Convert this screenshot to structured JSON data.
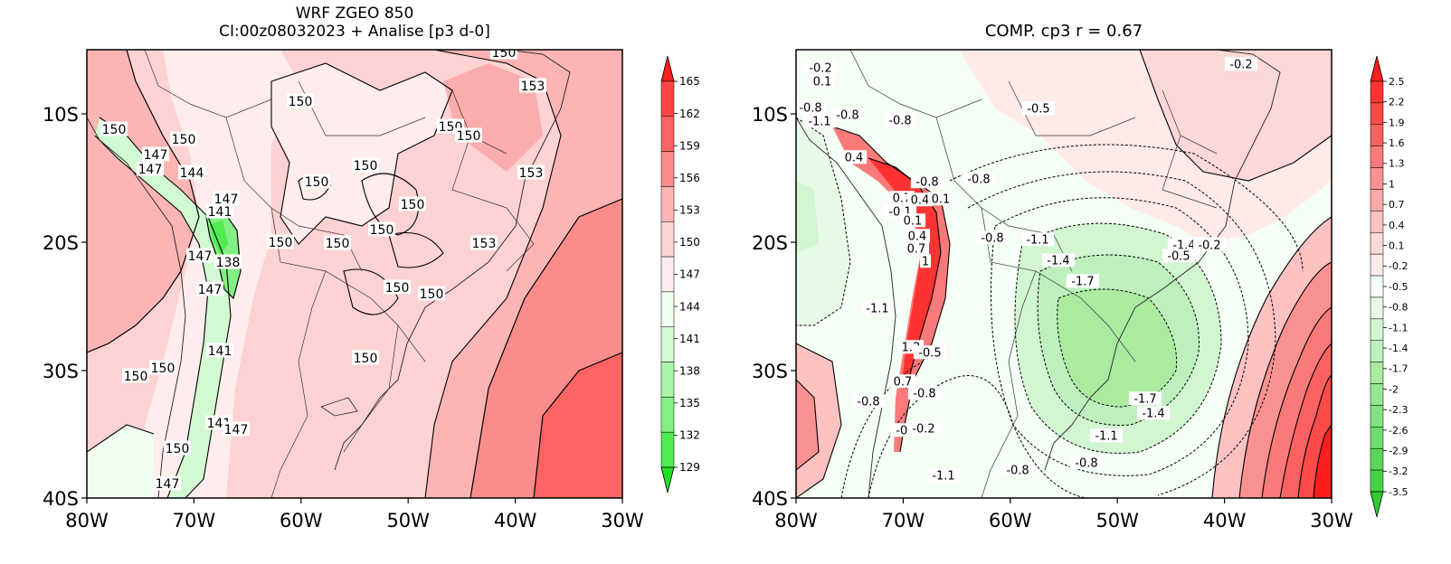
{
  "left_panel": {
    "title_line1": "WRF ZGEO 850",
    "title_line2": "CI:00z08032023 + Analise  [p3 d-0]",
    "y_ticks": [
      "10S",
      "20S",
      "30S",
      "40S"
    ],
    "x_ticks": [
      "80W",
      "70W",
      "60W",
      "50W",
      "40W",
      "30W"
    ],
    "colorbar_labels": [
      "165",
      "162",
      "159",
      "156",
      "153",
      "150",
      "147",
      "144",
      "141",
      "138",
      "135",
      "132",
      "129"
    ],
    "colorbar_colors": [
      "#ff2020",
      "#ff4646",
      "#fc6464",
      "#fa8c8c",
      "#fcb4b4",
      "#fdd2d2",
      "#ffecec",
      "#f0fff0",
      "#d2fad2",
      "#aaf5aa",
      "#82f082",
      "#50eb50",
      "#20e020"
    ],
    "contour_labels": [
      "150",
      "150",
      "153",
      "150",
      "150",
      "150",
      "150",
      "147",
      "147",
      "144",
      "153",
      "147",
      "141",
      "150",
      "150",
      "150",
      "150",
      "150",
      "150",
      "138",
      "153",
      "147",
      "150",
      "150",
      "147",
      "141",
      "150",
      "150",
      "150",
      "141",
      "147",
      "150",
      "147"
    ]
  },
  "right_panel": {
    "title": "COMP. cp3  r =  0.67",
    "y_ticks": [
      "10S",
      "20S",
      "30S",
      "40S"
    ],
    "x_ticks": [
      "80W",
      "70W",
      "60W",
      "50W",
      "40W",
      "30W"
    ],
    "colorbar_labels": [
      "2.5",
      "2.2",
      "1.9",
      "1.6",
      "1.3",
      "1",
      "0.7",
      "0.4",
      "0.1",
      "-0.2",
      "-0.5",
      "-0.8",
      "-1.1",
      "-1.4",
      "-1.7",
      "-2",
      "-2.3",
      "-2.6",
      "-2.9",
      "-3.2",
      "-3.5"
    ],
    "colorbar_colors": [
      "#ff1e1e",
      "#ff3232",
      "#ff4a4a",
      "#fc6262",
      "#fa7a7a",
      "#fa9292",
      "#fcaaaa",
      "#fcc2c2",
      "#fdd8d8",
      "#ffeaea",
      "#f5fff5",
      "#e6fae6",
      "#d2f5d2",
      "#bef0be",
      "#aaeba0",
      "#96e696",
      "#82e182",
      "#6edc6e",
      "#5ad75a",
      "#46d246",
      "#30cd30"
    ],
    "contour_labels": [
      "-0.2",
      "0.1",
      "-0.8",
      "-1.1",
      "-0.8",
      "-0.8",
      "0.4",
      "-0.8",
      "-0.8",
      "0.7",
      "0.4",
      "0.1",
      "-0.1",
      "0.1",
      "0.4",
      "0.7",
      "1",
      "-0.8",
      "-1.1",
      "-1.4",
      "-0.5",
      "-0.2",
      "-1.7",
      "-1.1",
      "-0.2",
      "1.3",
      "-0.5",
      "0.7",
      "-0.8",
      "-0.8",
      "-0.1",
      "-0.2",
      "-1.7",
      "-1.4",
      "-1.1",
      "-0.8",
      "-0.8",
      "-1.1",
      "-1.4",
      "-0.5",
      "-0.2"
    ]
  }
}
